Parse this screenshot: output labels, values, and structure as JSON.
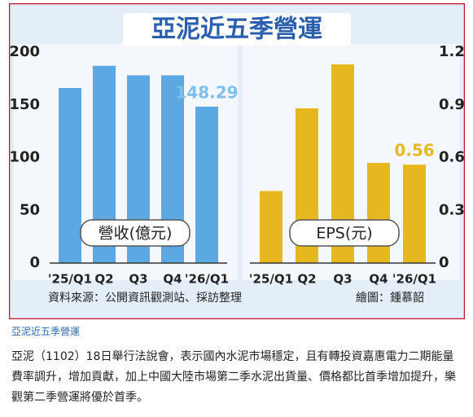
{
  "title": "亞泥近五季營運",
  "source": "資料來源：公開資訊觀測站、採訪整理",
  "credit": "繪圖：鍾慕韶",
  "caption": "亞泥近五季營運",
  "article": "亞泥（1102）18日舉行法說會，表示國內水泥市場穩定，且有轉投資嘉惠電力二期能量費率調升，增加貢獻，加上中國大陸市場第二季水泥出貨量、價格都比首季增加提升，樂觀第二季營運將優於首季。",
  "chart_data": [
    {
      "type": "bar",
      "ylabel": "營收(億元)",
      "categories": [
        "'25/Q1",
        "Q2",
        "Q3",
        "Q4",
        "'26/Q1"
      ],
      "values": [
        166,
        187,
        178,
        178,
        148.29
      ],
      "value_labels": [
        null,
        null,
        null,
        null,
        "148.29"
      ],
      "color": "#5ba8e2",
      "label_color": "#7cc0ee",
      "ylim": [
        0,
        200
      ],
      "yticks": [
        0,
        50,
        100,
        150,
        200
      ]
    },
    {
      "type": "bar",
      "ylabel": "EPS(元)",
      "categories": [
        "'25/Q1",
        "Q2",
        "Q3",
        "Q4",
        "'26/Q1"
      ],
      "values": [
        0.41,
        0.88,
        1.13,
        0.57,
        0.56
      ],
      "value_labels": [
        null,
        null,
        null,
        null,
        "0.56"
      ],
      "color": "#e6b71e",
      "label_color": "#e6b71e",
      "ylim": [
        0,
        1.2
      ],
      "yticks": [
        0,
        0.3,
        0.6,
        0.9,
        1.2
      ]
    }
  ]
}
